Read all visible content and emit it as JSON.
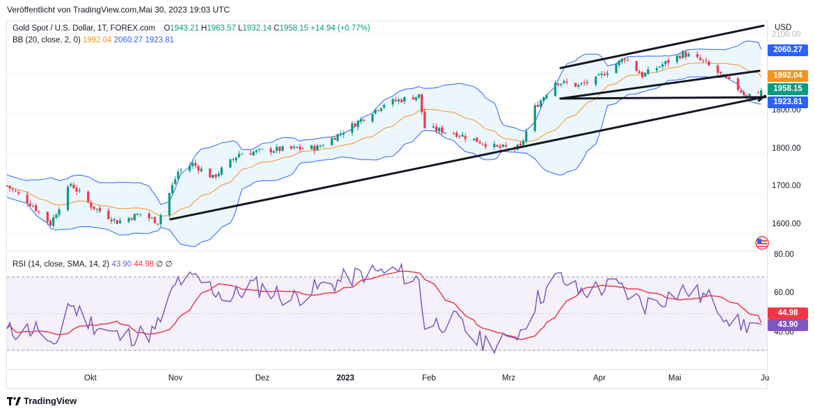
{
  "header": {
    "published": "Veröffentlicht von TradingView.com,Mai 30, 2023 19:03 UTC"
  },
  "legend": {
    "symbol": "Gold Spot / U.S. Dollar, 1T, FOREX.com",
    "o_label": "O",
    "o": "1943.21",
    "h_label": "H",
    "h": "1963.57",
    "l_label": "L",
    "l": "1932.14",
    "c_label": "C",
    "c": "1958.15",
    "change": "+14.94 (+0.77%)",
    "bb_name": "BB (20, close, 2, 0)",
    "bb_basis": "1992.04",
    "bb_upper": "2060.27",
    "bb_lower": "1923.81",
    "rsi_name": "RSI (14, close, SMA, 14, 2)",
    "rsi_value": "43.90",
    "rsi_sma": "44.98",
    "rsi_null1": "∅",
    "rsi_null2": "∅"
  },
  "price_axis": {
    "currency": "USD",
    "ticks": [
      "1600.00",
      "1700.00",
      "1800.00",
      "1900.00",
      "2100.00"
    ]
  },
  "rsi_axis": {
    "ticks": [
      "40.00",
      "60.00",
      "80.00"
    ]
  },
  "price_tags": {
    "upper": "2060.27",
    "basis": "1992.04",
    "close": "1958.15",
    "lower": "1923.81",
    "rsi_sma": "44.98",
    "rsi": "43.90"
  },
  "time_axis": {
    "labels": [
      "Okt",
      "Nov",
      "Dez",
      "2023",
      "Feb",
      "Mrz",
      "Apr",
      "Mai",
      "Ju"
    ]
  },
  "footer": {
    "brand": "TradingView"
  },
  "colors": {
    "up": "#089981",
    "down": "#f23645",
    "basis": "#f7931a",
    "bands": "#2962ff",
    "band_fill": "#e3f2fd",
    "rsi": "#7e57c2",
    "rsi_sma": "#f23645",
    "rsi_fill": "#ede7f6",
    "trendline": "#131722"
  },
  "chart_data": [
    {
      "type": "candlestick",
      "title": "Gold Spot / U.S. Dollar, 1T, FOREX.com",
      "x_range": [
        "2022-09-12",
        "2023-06-01"
      ],
      "ylim": [
        1560,
        2130
      ],
      "x_ticks": [
        "Okt",
        "Nov",
        "Dez",
        "2023",
        "Feb",
        "Mrz",
        "Apr",
        "Mai",
        "Ju"
      ],
      "close_path": [
        [
          "2022-09-12",
          1720
        ],
        [
          "2022-09-21",
          1670
        ],
        [
          "2022-09-27",
          1625
        ],
        [
          "2022-10-04",
          1725
        ],
        [
          "2022-10-11",
          1670
        ],
        [
          "2022-10-20",
          1630
        ],
        [
          "2022-10-28",
          1650
        ],
        [
          "2022-11-03",
          1630
        ],
        [
          "2022-11-10",
          1755
        ],
        [
          "2022-11-15",
          1775
        ],
        [
          "2022-11-22",
          1740
        ],
        [
          "2022-12-01",
          1800
        ],
        [
          "2022-12-13",
          1810
        ],
        [
          "2022-12-28",
          1815
        ],
        [
          "2023-01-10",
          1875
        ],
        [
          "2023-01-20",
          1925
        ],
        [
          "2023-02-01",
          1945
        ],
        [
          "2023-02-03",
          1865
        ],
        [
          "2023-02-14",
          1850
        ],
        [
          "2023-02-28",
          1815
        ],
        [
          "2023-03-08",
          1815
        ],
        [
          "2023-03-13",
          1915
        ],
        [
          "2023-03-20",
          1980
        ],
        [
          "2023-03-28",
          1970
        ],
        [
          "2023-04-03",
          1985
        ],
        [
          "2023-04-13",
          2040
        ],
        [
          "2023-04-19",
          1995
        ],
        [
          "2023-05-03",
          2050
        ],
        [
          "2023-05-10",
          2030
        ],
        [
          "2023-05-19",
          1980
        ],
        [
          "2023-05-25",
          1945
        ],
        [
          "2023-05-30",
          1958.15
        ]
      ],
      "last": {
        "open": 1943.21,
        "high": 1963.57,
        "low": 1932.14,
        "close": 1958.15
      }
    },
    {
      "type": "line",
      "title": "BB (20, close, 2, 0)",
      "series": [
        {
          "name": "basis",
          "values": [
            1992.04
          ]
        },
        {
          "name": "upper",
          "values": [
            2060.27
          ]
        },
        {
          "name": "lower",
          "values": [
            1923.81
          ]
        }
      ]
    },
    {
      "type": "line",
      "title": "RSI (14, close, SMA, 14, 2)",
      "ylim": [
        20,
        84
      ],
      "bands": [
        30,
        70
      ],
      "rsi_path": [
        [
          "2022-09-12",
          40
        ],
        [
          "2022-09-23",
          42
        ],
        [
          "2022-09-28",
          28
        ],
        [
          "2022-10-03",
          56
        ],
        [
          "2022-10-11",
          45
        ],
        [
          "2022-10-21",
          37
        ],
        [
          "2022-11-02",
          40
        ],
        [
          "2022-11-10",
          68
        ],
        [
          "2022-11-17",
          68
        ],
        [
          "2022-11-28",
          58
        ],
        [
          "2022-12-05",
          66
        ],
        [
          "2022-12-12",
          62
        ],
        [
          "2022-12-19",
          58
        ],
        [
          "2022-12-30",
          65
        ],
        [
          "2023-01-13",
          72
        ],
        [
          "2023-01-24",
          73
        ],
        [
          "2023-02-01",
          68
        ],
        [
          "2023-02-03",
          44
        ],
        [
          "2023-02-14",
          46
        ],
        [
          "2023-02-21",
          35
        ],
        [
          "2023-03-02",
          34
        ],
        [
          "2023-03-08",
          41
        ],
        [
          "2023-03-14",
          58
        ],
        [
          "2023-03-21",
          70
        ],
        [
          "2023-03-28",
          62
        ],
        [
          "2023-04-10",
          65
        ],
        [
          "2023-04-20",
          55
        ],
        [
          "2023-05-04",
          63
        ],
        [
          "2023-05-12",
          58
        ],
        [
          "2023-05-22",
          44
        ],
        [
          "2023-05-30",
          43.9
        ]
      ],
      "series": [
        {
          "name": "RSI",
          "last": 43.9
        },
        {
          "name": "SMA",
          "last": 44.98
        }
      ]
    }
  ]
}
